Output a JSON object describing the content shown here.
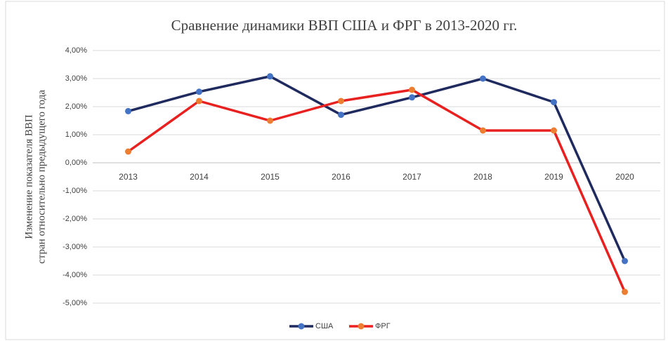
{
  "chart_data": {
    "type": "line",
    "title": "Сравнение динамики ВВП США и ФРГ в 2013-2020 гг.",
    "ylabel": [
      "Изменение показателя ВВП",
      "стран относительно предыдущего года"
    ],
    "categories": [
      "2013",
      "2014",
      "2015",
      "2016",
      "2017",
      "2018",
      "2019",
      "2020"
    ],
    "series": [
      {
        "name": "США",
        "color": "#1f2a5e",
        "marker_color": "#4472c4",
        "values": [
          1.84,
          2.53,
          3.08,
          1.71,
          2.33,
          3.0,
          2.16,
          -3.5
        ]
      },
      {
        "name": "ФРГ",
        "color": "#e8201f",
        "marker_color": "#ed7d31",
        "values": [
          0.4,
          2.2,
          1.5,
          2.2,
          2.6,
          1.15,
          1.15,
          -4.6
        ]
      }
    ],
    "ylim": [
      -5,
      4
    ],
    "yticks": [
      {
        "value": 4,
        "label": "4,00%"
      },
      {
        "value": 3,
        "label": "3,00%"
      },
      {
        "value": 2,
        "label": "2,00%"
      },
      {
        "value": 1,
        "label": "1,00%"
      },
      {
        "value": 0,
        "label": "0,00%"
      },
      {
        "value": -1,
        "label": "-1,00%"
      },
      {
        "value": -2,
        "label": "-2,00%"
      },
      {
        "value": -3,
        "label": "-3,00%"
      },
      {
        "value": -4,
        "label": "-4,00%"
      },
      {
        "value": -5,
        "label": "-5,00%"
      }
    ],
    "grid": true,
    "legend": "bottom"
  }
}
